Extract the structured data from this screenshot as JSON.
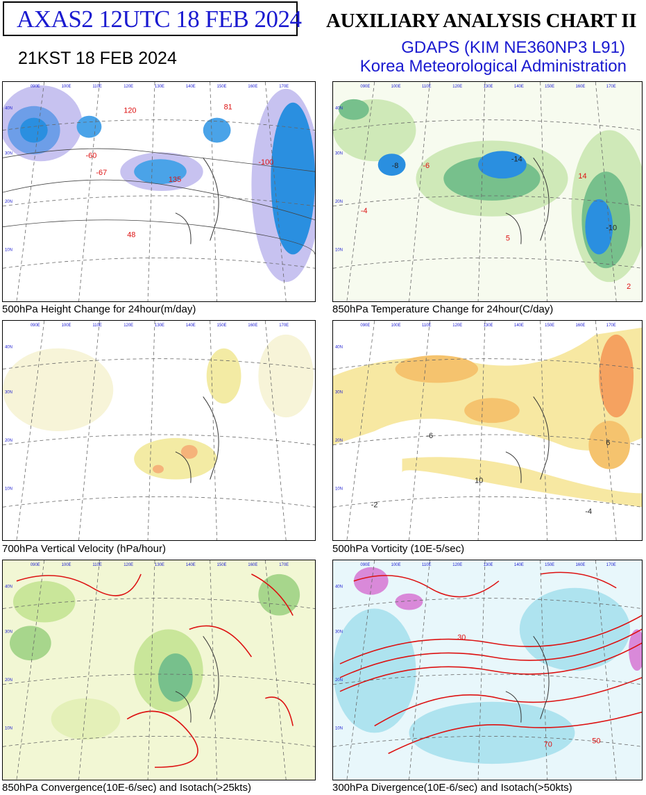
{
  "header": {
    "product_code": "AXAS2  12UTC 18 FEB 2024",
    "chart_title": "AUXILIARY ANALYSIS CHART II",
    "local_time": "21KST 18 FEB 2024",
    "model": "GDAPS (KIM NE360NP3 L91)",
    "agency": "Korea Meteorological Administration"
  },
  "panels": [
    {
      "caption": "500hPa Height Change for 24hour(m/day)",
      "labels": [
        "120",
        "81",
        "135",
        "-100",
        "-67",
        "48",
        "-60"
      ]
    },
    {
      "caption": "850hPa Temperature Change for 24hour(C/day)",
      "labels": [
        "-14",
        "-10",
        "-8",
        "5",
        "14",
        "-4",
        "2",
        "-6"
      ]
    },
    {
      "caption": "700hPa Vertical Velocity (hPa/hour)",
      "labels": []
    },
    {
      "caption": "500hPa Vorticity (10E-5/sec)",
      "labels": [
        "-6",
        "10",
        "-4",
        "6",
        "-2"
      ]
    },
    {
      "caption": "850hPa Convergence(10E-6/sec) and Isotach(>25kts)",
      "labels": []
    },
    {
      "caption": "300hPa Divergence(10E-6/sec) and Isotach(>50kts)",
      "labels": [
        "50",
        "30",
        "70"
      ]
    }
  ],
  "map_grid": {
    "lon_labels": [
      "090E",
      "100E",
      "110E",
      "120E",
      "130E",
      "140E",
      "150E",
      "160E",
      "170E"
    ],
    "lat_labels": [
      "40N",
      "30N",
      "20N",
      "10N"
    ]
  },
  "colors": {
    "title_blue": "#1a1ad0",
    "isotach_red": "#d11",
    "neg_blue": "#2a8fe0",
    "pos_yellow": "#f5d35c"
  }
}
